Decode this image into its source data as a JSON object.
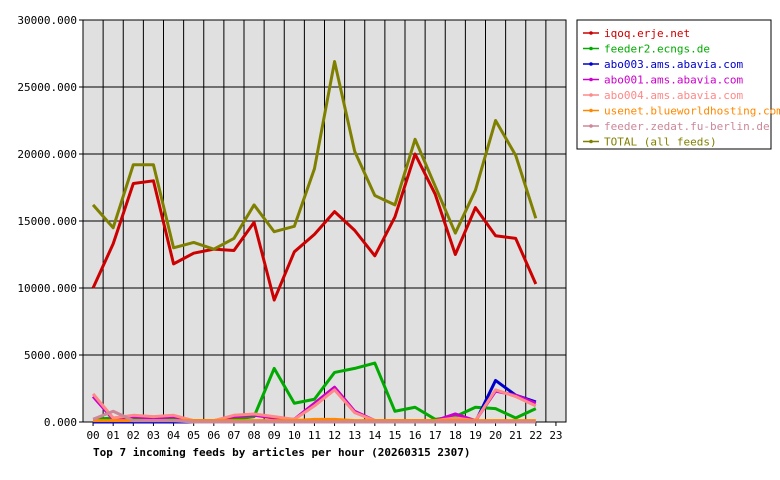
{
  "chart_data": {
    "type": "line",
    "title": "Top 7 incoming feeds by articles per hour (20260315 2307)",
    "x": [
      "00",
      "01",
      "02",
      "03",
      "04",
      "05",
      "06",
      "07",
      "08",
      "09",
      "10",
      "11",
      "12",
      "13",
      "14",
      "15",
      "16",
      "17",
      "18",
      "19",
      "20",
      "21",
      "22",
      "23"
    ],
    "ylim": [
      0,
      30000
    ],
    "yticks": [
      "0.000",
      "5000.000",
      "10000.000",
      "15000.000",
      "20000.000",
      "25000.000",
      "30000.000"
    ],
    "yticks_values": [
      0,
      5000,
      10000,
      15000,
      20000,
      25000,
      30000
    ],
    "grid": true,
    "legend_position": "right",
    "series": [
      {
        "name": "iqoq.erje.net",
        "color": "#cc0000",
        "values": [
          10000,
          13300,
          17800,
          18000,
          11800,
          12600,
          12900,
          12800,
          14900,
          9100,
          12700,
          14000,
          15700,
          14300,
          12400,
          15300,
          20000,
          17000,
          12500,
          16000,
          13900,
          13700,
          10300,
          null
        ]
      },
      {
        "name": "feeder2.ecngs.de",
        "color": "#00aa00",
        "values": [
          200,
          300,
          200,
          200,
          200,
          100,
          100,
          200,
          400,
          4000,
          1400,
          1700,
          3700,
          4000,
          4400,
          800,
          1100,
          200,
          400,
          1100,
          1000,
          300,
          1000,
          null
        ]
      },
      {
        "name": "abo003.ams.abavia.com",
        "color": "#0000cc",
        "values": [
          0,
          0,
          0,
          0,
          0,
          0,
          0,
          0,
          0,
          0,
          0,
          0,
          0,
          0,
          0,
          0,
          0,
          0,
          0,
          0,
          3100,
          2000,
          1500,
          null
        ]
      },
      {
        "name": "abo001.ams.abavia.com",
        "color": "#cc00cc",
        "values": [
          1900,
          200,
          400,
          300,
          400,
          100,
          100,
          400,
          500,
          300,
          200,
          1400,
          2600,
          800,
          100,
          100,
          100,
          100,
          600,
          100,
          2300,
          2000,
          1400,
          null
        ]
      },
      {
        "name": "abo004.ams.abavia.com",
        "color": "#ff8888",
        "values": [
          2100,
          300,
          500,
          400,
          500,
          100,
          100,
          500,
          600,
          400,
          200,
          1200,
          2400,
          700,
          100,
          100,
          100,
          100,
          300,
          100,
          2400,
          1900,
          1200,
          null
        ]
      },
      {
        "name": "usenet.blueworldhosting.com",
        "color": "#ff8800",
        "values": [
          100,
          100,
          100,
          100,
          100,
          100,
          100,
          100,
          100,
          100,
          100,
          200,
          200,
          100,
          100,
          100,
          100,
          100,
          100,
          100,
          100,
          100,
          100,
          null
        ]
      },
      {
        "name": "feeder.zedat.fu-berlin.de",
        "color": "#cc8899",
        "values": [
          200,
          800,
          100,
          100,
          100,
          0,
          0,
          0,
          0,
          0,
          0,
          0,
          0,
          0,
          0,
          0,
          0,
          0,
          0,
          0,
          0,
          0,
          0,
          null
        ]
      },
      {
        "name": "TOTAL (all feeds)",
        "color": "#808000",
        "values": [
          16200,
          14500,
          19200,
          19200,
          13000,
          13400,
          12900,
          13700,
          16200,
          14200,
          14600,
          18900,
          26900,
          20200,
          16900,
          16200,
          21100,
          17600,
          14100,
          17300,
          22500,
          19900,
          15200,
          null
        ]
      }
    ]
  }
}
